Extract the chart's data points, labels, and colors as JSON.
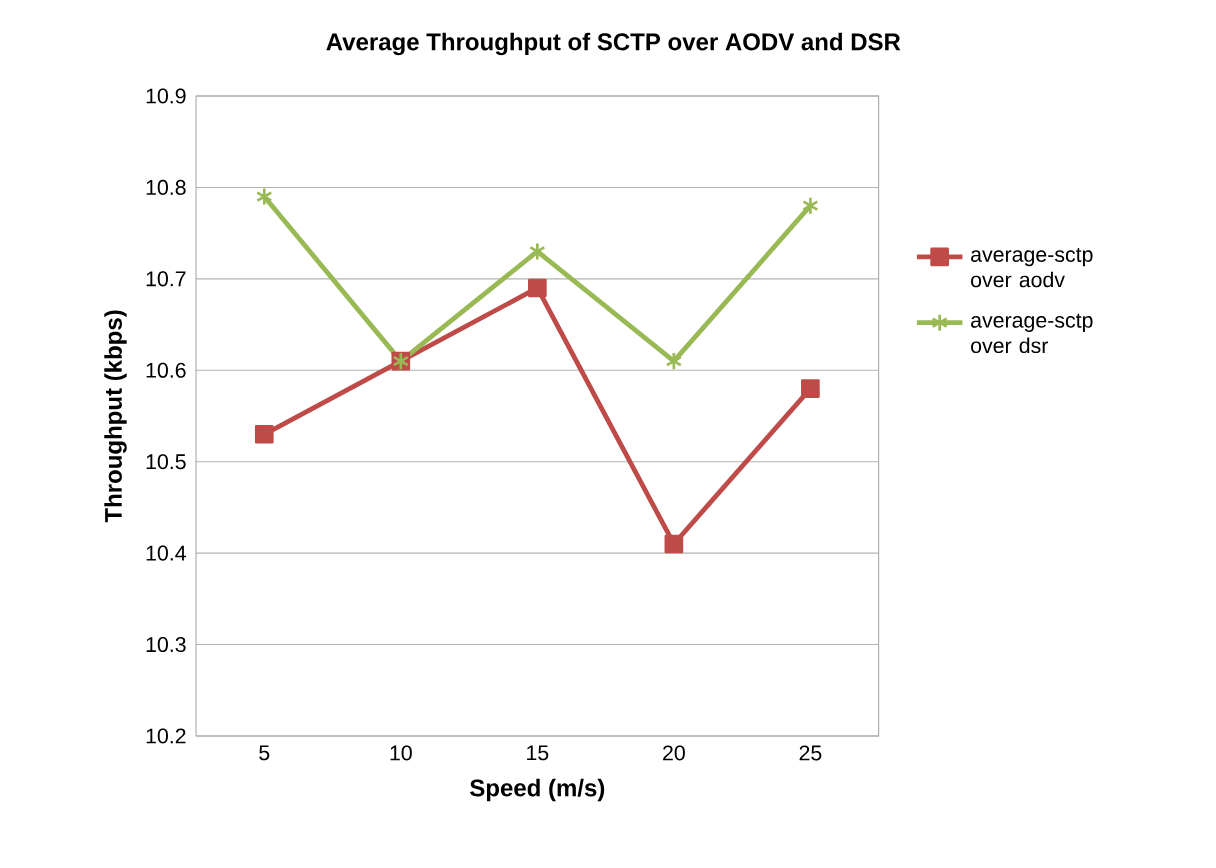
{
  "chart_data": {
    "type": "line",
    "title": "Average Throughput  of SCTP over  AODV and DSR",
    "xlabel": "Speed (m/s)",
    "ylabel": "Throughput (kbps)",
    "categories": [
      "5",
      "10",
      "15",
      "20",
      "25"
    ],
    "series": [
      {
        "name": "average-sctp over aodv",
        "color": "#be4b48",
        "marker": "square",
        "values": [
          10.53,
          10.61,
          10.69,
          10.41,
          10.58
        ]
      },
      {
        "name": "average-sctp over dsr",
        "color": "#98b954",
        "marker": "cross",
        "values": [
          10.79,
          10.61,
          10.73,
          10.61,
          10.78
        ]
      }
    ],
    "ylim": [
      10.2,
      10.9
    ],
    "yticks": [
      10.2,
      10.3,
      10.4,
      10.5,
      10.6,
      10.7,
      10.8,
      10.9
    ],
    "grid": "y",
    "legend": "right",
    "line_style": "solid"
  }
}
